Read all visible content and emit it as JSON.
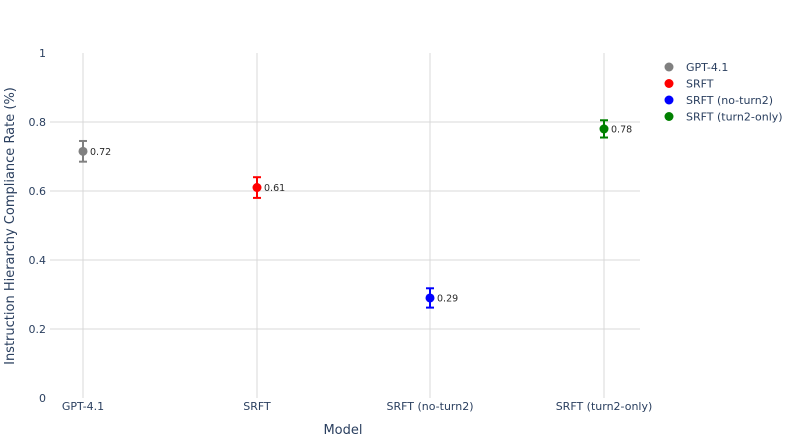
{
  "chart_data": {
    "type": "scatter",
    "title": "",
    "xlabel": "Model",
    "ylabel": "Instruction Hierarchy Compliance Rate (%)",
    "categories": [
      "GPT-4.1",
      "SRFT",
      "SRFT (no-turn2)",
      "SRFT (turn2-only)"
    ],
    "ylim": [
      0,
      1
    ],
    "yticks": [
      0,
      0.2,
      0.4,
      0.6,
      0.8,
      1
    ],
    "ytick_labels": [
      "0",
      "0.2",
      "0.4",
      "0.6",
      "0.8",
      "1"
    ],
    "grid": true,
    "legend_position": "top-right",
    "series": [
      {
        "name": "GPT-4.1",
        "category": "GPT-4.1",
        "value": 0.715,
        "error": 0.03,
        "label": "0.72",
        "color": "#808080"
      },
      {
        "name": "SRFT",
        "category": "SRFT",
        "value": 0.61,
        "error": 0.03,
        "label": "0.61",
        "color": "#ff0000"
      },
      {
        "name": "SRFT (no-turn2)",
        "category": "SRFT (no-turn2)",
        "value": 0.29,
        "error": 0.028,
        "label": "0.29",
        "color": "#0000ff"
      },
      {
        "name": "SRFT (turn2-only)",
        "category": "SRFT (turn2-only)",
        "value": 0.78,
        "error": 0.025,
        "label": "0.78",
        "color": "#008000"
      }
    ],
    "colors": {
      "axis_text": "#2a3f5f",
      "grid": "#d9d9d9"
    }
  }
}
